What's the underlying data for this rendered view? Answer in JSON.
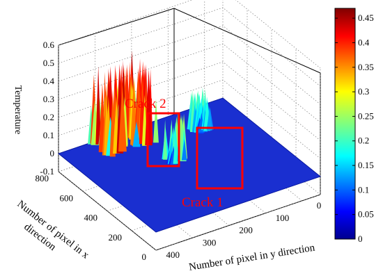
{
  "chart_data": {
    "type": "surface",
    "title": "",
    "zlabel": "Temperature",
    "xlabel": "Number of pixel in x direction",
    "xlabel_lines": [
      "Number of pixel in x",
      "direction"
    ],
    "ylabel": "Number of pixel in y direction",
    "zlim": [
      -0.1,
      0.6
    ],
    "z_ticks": [
      "-0.1",
      "0",
      "0.1",
      "0.2",
      "0.3",
      "0.4",
      "0.5",
      "0.6"
    ],
    "xlim": [
      0,
      800
    ],
    "x_ticks": [
      "0",
      "200",
      "400",
      "600",
      "800"
    ],
    "ylim": [
      0,
      450
    ],
    "y_ticks": [
      "0",
      "100",
      "200",
      "300",
      "400"
    ],
    "grid": true,
    "colorbar": {
      "colormap": "jet",
      "range": [
        0,
        0.47
      ],
      "ticks": [
        "0",
        "0.05",
        "0.1",
        "0.15",
        "0.2",
        "0.25",
        "0.3",
        "0.35",
        "0.4",
        "0.45"
      ]
    },
    "annotations": [
      {
        "label": "Crack 2",
        "color": "#ff0000"
      },
      {
        "label": "Crack 1",
        "color": "#ff0000"
      }
    ],
    "surface_peaks": [
      {
        "region": "Crack 2",
        "x_approx": 630,
        "y_approx": 330,
        "peak_temperature": 0.22
      },
      {
        "region": "Crack 1",
        "x_approx": 470,
        "y_approx": 210,
        "peak_temperature": 0.25
      },
      {
        "region": "hot zone",
        "x_approx": 720,
        "y_approx": 150,
        "peak_temperature": 0.45
      }
    ]
  }
}
